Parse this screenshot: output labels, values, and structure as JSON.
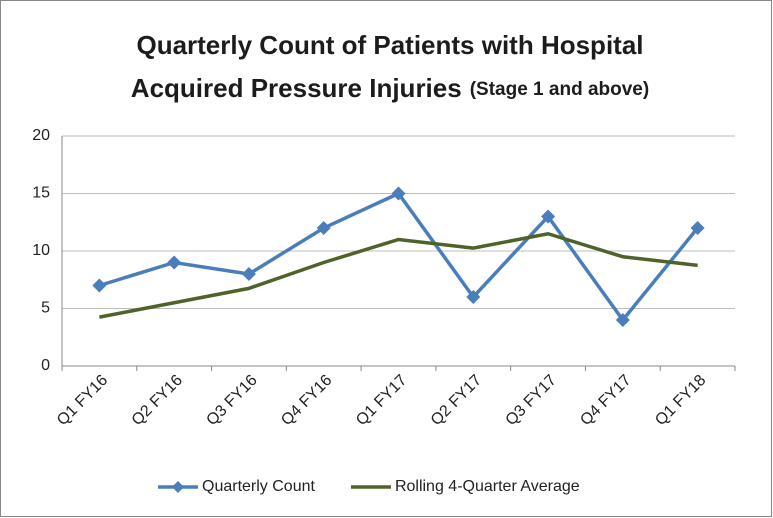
{
  "chart_data": {
    "type": "line",
    "title": [
      "Quarterly Count of Patients with Hospital",
      "Acquired Pressure Injuries"
    ],
    "subtitle": "(Stage 1 and above)",
    "categories": [
      "Q1 FY16",
      "Q2 FY16",
      "Q3 FY16",
      "Q4 FY16",
      "Q1 FY17",
      "Q2 FY17",
      "Q3 FY17",
      "Q4 FY17",
      "Q1 FY18"
    ],
    "series": [
      {
        "name": "Quarterly Count",
        "color": "#4a7ebb",
        "marker": "diamond",
        "values": [
          7,
          9,
          8,
          12,
          15,
          6,
          13,
          4,
          12
        ]
      },
      {
        "name": "Rolling 4-Quarter Average",
        "color": "#4f6228",
        "marker": "none",
        "values": [
          4.25,
          5.5,
          6.75,
          9,
          11,
          10.25,
          11.5,
          9.5,
          8.75
        ]
      }
    ],
    "ylim": [
      0,
      20
    ],
    "yticks": [
      0,
      5,
      10,
      15,
      20
    ],
    "grid": true,
    "legend": "bottom"
  }
}
